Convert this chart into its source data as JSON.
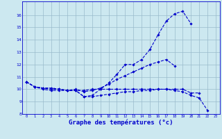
{
  "hours": [
    0,
    1,
    2,
    3,
    4,
    5,
    6,
    7,
    8,
    9,
    10,
    11,
    12,
    13,
    14,
    15,
    16,
    17,
    18,
    19,
    20,
    21,
    22,
    23
  ],
  "line_high": [
    10.6,
    10.2,
    10.1,
    10.1,
    10.0,
    9.9,
    9.9,
    9.4,
    9.5,
    10.0,
    10.5,
    11.2,
    12.0,
    12.0,
    12.4,
    13.2,
    14.4,
    15.5,
    16.1,
    16.3,
    15.3,
    null,
    null,
    null
  ],
  "line_mid": [
    10.6,
    10.2,
    10.1,
    10.1,
    10.0,
    9.9,
    10.0,
    9.8,
    9.9,
    10.1,
    10.4,
    10.8,
    11.1,
    11.4,
    11.7,
    12.0,
    12.2,
    12.4,
    11.9,
    null,
    null,
    null,
    null,
    null
  ],
  "line_flat": [
    10.6,
    10.2,
    10.1,
    10.0,
    10.0,
    9.9,
    9.9,
    9.9,
    10.0,
    10.0,
    10.0,
    10.0,
    10.0,
    10.0,
    10.0,
    10.0,
    10.0,
    10.0,
    10.0,
    10.0,
    9.7,
    9.7,
    null,
    null
  ],
  "line_low": [
    10.6,
    10.2,
    10.0,
    9.9,
    9.9,
    9.9,
    9.9,
    9.4,
    9.4,
    9.5,
    9.6,
    9.7,
    9.8,
    9.8,
    9.9,
    9.9,
    10.0,
    10.0,
    9.9,
    9.8,
    9.5,
    9.3,
    8.3,
    null
  ],
  "xlabel": "Graphe des températures (°c)",
  "ylim_min": 8,
  "ylim_max": 17,
  "xlim_min": 0,
  "xlim_max": 23,
  "yticks": [
    8,
    9,
    10,
    11,
    12,
    13,
    14,
    15,
    16
  ],
  "bg_color": "#cce8f0",
  "line_color": "#0000cc",
  "grid_color": "#99bbcc"
}
